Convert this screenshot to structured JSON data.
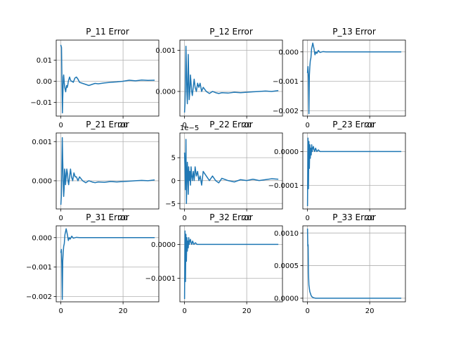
{
  "figure": {
    "background": "#ffffff",
    "line_color": "#1f77b4",
    "grid_color": "#b0b0b0",
    "axis_color": "#000000"
  },
  "chart_data": [
    {
      "type": "line",
      "title": "P_11 Error",
      "xlabel": "",
      "ylabel": "",
      "xlim": [
        -1.5,
        31.5
      ],
      "ylim": [
        -0.0165,
        0.0195
      ],
      "xticks": [
        0,
        20
      ],
      "xtick_labels": [
        "0",
        "20"
      ],
      "yticks": [
        -0.01,
        0.0,
        0.01
      ],
      "ytick_labels": [
        "−0.01",
        "0.00",
        "0.01"
      ],
      "offset_text": "",
      "grid": true,
      "series": [
        {
          "x": [
            0,
            0.2,
            0.35,
            0.5,
            0.6,
            0.7,
            0.8,
            0.9,
            1.0,
            1.1,
            1.25,
            1.4,
            1.55,
            1.7,
            1.85,
            2.0,
            2.2,
            2.4,
            2.6,
            2.8,
            3.0,
            3.3,
            3.6,
            4.0,
            4.5,
            5.0,
            5.5,
            6.0,
            7,
            8,
            9,
            10,
            11,
            12,
            14,
            16,
            18,
            20,
            22,
            24,
            26,
            28,
            30
          ],
          "y": [
            0.017,
            0.016,
            0.0,
            -0.015,
            -0.008,
            -0.003,
            0.002,
            0.003,
            0.001,
            -0.001,
            -0.003,
            -0.004,
            -0.005,
            -0.003,
            -0.002,
            -0.003,
            -0.002,
            0.0,
            0.001,
            0.002,
            0.001,
            0.0,
            0.0,
            -0.0005,
            0.0015,
            0.002,
            0.001,
            -0.0005,
            -0.001,
            -0.0015,
            -0.002,
            -0.0015,
            -0.001,
            -0.0012,
            -0.0008,
            -0.0005,
            -0.0003,
            0.0,
            0.0005,
            0.0002,
            0.0006,
            0.0004,
            0.0005
          ]
        }
      ]
    },
    {
      "type": "line",
      "title": "P_12 Error",
      "xlabel": "",
      "ylabel": "",
      "xlim": [
        -1.5,
        31.5
      ],
      "ylim": [
        -0.0006,
        0.00125
      ],
      "xticks": [
        0,
        20
      ],
      "xtick_labels": [
        "0",
        "20"
      ],
      "yticks": [
        0.0,
        0.001
      ],
      "ytick_labels": [
        "0.000",
        "0.001"
      ],
      "offset_text": "",
      "grid": true,
      "series": [
        {
          "x": [
            0,
            0.15,
            0.3,
            0.45,
            0.6,
            0.75,
            0.9,
            1.05,
            1.2,
            1.35,
            1.5,
            1.7,
            1.9,
            2.1,
            2.3,
            2.5,
            2.8,
            3.1,
            3.4,
            3.8,
            4.2,
            4.6,
            5,
            5.5,
            6,
            7,
            8,
            9,
            10,
            11,
            12,
            14,
            16,
            18,
            20,
            22,
            24,
            26,
            28,
            30
          ],
          "y": [
            -0.0005,
            -0.0003,
            0.0002,
            0.0011,
            0.0006,
            0.0,
            -0.0003,
            0.0002,
            0.0009,
            0.0003,
            -0.0002,
            0.0,
            0.0004,
            0.0002,
            0.0,
            -0.0001,
            0.0001,
            0.0003,
            0.0001,
            0.0,
            0.0002,
            0.0001,
            0.0002,
            0.0,
            0.0001,
            0.0,
            -5e-05,
            0.0,
            -3e-05,
            -5e-05,
            -3e-05,
            -4e-05,
            -2e-05,
            -3e-05,
            -2e-05,
            -1e-05,
            0.0,
            1e-05,
            0.0,
            2e-05
          ]
        }
      ]
    },
    {
      "type": "line",
      "title": "P_13 Error",
      "xlabel": "",
      "ylabel": "",
      "xlim": [
        -1.5,
        31.5
      ],
      "ylim": [
        -0.00218,
        0.0004
      ],
      "xticks": [
        0,
        20
      ],
      "xtick_labels": [
        "0",
        "20"
      ],
      "yticks": [
        -0.002,
        -0.001,
        0.0
      ],
      "ytick_labels": [
        "−0.002",
        "−0.001",
        "0.000"
      ],
      "offset_text": "",
      "grid": true,
      "series": [
        {
          "x": [
            0,
            0.15,
            0.3,
            0.45,
            0.6,
            0.75,
            0.9,
            1.1,
            1.3,
            1.5,
            1.7,
            1.9,
            2.1,
            2.4,
            2.7,
            3.0,
            3.5,
            4.0,
            5,
            6,
            8,
            10,
            15,
            20,
            25,
            30
          ],
          "y": [
            -0.0007,
            -0.0005,
            -0.0009,
            -0.0021,
            -0.0008,
            -0.0005,
            -0.0003,
            -0.0002,
            0.0001,
            0.0002,
            0.0003,
            0.0002,
            0.0001,
            -0.0001,
            0.0,
            -5e-05,
            5e-05,
            -2e-05,
            1e-05,
            0.0,
            0.0,
            0.0,
            0.0,
            0.0,
            0.0,
            0.0
          ]
        }
      ]
    },
    {
      "type": "line",
      "title": "P_21 Error",
      "xlabel": "",
      "ylabel": "",
      "xlim": [
        -1.5,
        31.5
      ],
      "ylim": [
        -0.00072,
        0.00122
      ],
      "xticks": [
        0,
        20
      ],
      "xtick_labels": [
        "0",
        "20"
      ],
      "yticks": [
        0.0,
        0.001
      ],
      "ytick_labels": [
        "0.000",
        "0.001"
      ],
      "offset_text": "",
      "grid": true,
      "series": [
        {
          "x": [
            0,
            0.15,
            0.3,
            0.45,
            0.6,
            0.75,
            0.9,
            1.05,
            1.2,
            1.35,
            1.5,
            1.7,
            1.9,
            2.1,
            2.3,
            2.5,
            2.8,
            3.1,
            3.4,
            3.8,
            4.2,
            4.6,
            5,
            5.5,
            6,
            7,
            8,
            9,
            10,
            11,
            12,
            14,
            16,
            18,
            20,
            22,
            24,
            26,
            28,
            30
          ],
          "y": [
            -0.0006,
            -0.0004,
            0.0002,
            0.0011,
            0.0005,
            0.0,
            -0.0004,
            -0.0002,
            0.0003,
            0.0002,
            -0.0001,
            0.0001,
            0.0003,
            0.0002,
            0.0,
            -0.0001,
            0.0001,
            0.0003,
            0.0001,
            0.0,
            0.0002,
            0.0001,
            0.0001,
            0.0,
            0.0001,
            0.0,
            -5e-05,
            0.0,
            -3e-05,
            -5e-05,
            -3e-05,
            -4e-05,
            -2e-05,
            -3e-05,
            -2e-05,
            -1e-05,
            0.0,
            1e-05,
            0.0,
            2e-05
          ]
        }
      ]
    },
    {
      "type": "line",
      "title": "P_22 Error",
      "xlabel": "",
      "ylabel": "",
      "xlim": [
        -1.5,
        31.5
      ],
      "ylim": [
        -6.2,
        10.4
      ],
      "xticks": [
        0,
        20
      ],
      "xtick_labels": [
        "0",
        "20"
      ],
      "yticks": [
        -5,
        0,
        5
      ],
      "ytick_labels": [
        "−5",
        "0",
        "5"
      ],
      "offset_text": "1e−5",
      "grid": true,
      "series": [
        {
          "x": [
            0,
            0.15,
            0.3,
            0.45,
            0.6,
            0.75,
            0.9,
            1.05,
            1.2,
            1.35,
            1.5,
            1.7,
            1.9,
            2.1,
            2.3,
            2.5,
            2.8,
            3.1,
            3.4,
            3.8,
            4.2,
            4.6,
            5,
            5.5,
            6,
            7,
            8,
            9,
            10,
            11,
            12,
            14,
            16,
            18,
            20,
            22,
            24,
            26,
            28,
            30
          ],
          "y": [
            6,
            3,
            -2,
            9,
            -5,
            0,
            4,
            1,
            -3,
            3,
            0,
            2,
            -1,
            3,
            1,
            0,
            2,
            0,
            3,
            1,
            2,
            0,
            1,
            -1,
            2,
            1,
            0,
            1,
            0,
            -0.5,
            0.5,
            0,
            -0.3,
            0.2,
            0,
            0.3,
            0,
            0.2,
            0.4,
            0.3
          ]
        }
      ]
    },
    {
      "type": "line",
      "title": "P_23 Error",
      "xlabel": "",
      "ylabel": "",
      "xlim": [
        -1.5,
        31.5
      ],
      "ylim": [
        -0.00017,
        5.5e-05
      ],
      "xticks": [
        0,
        20
      ],
      "xtick_labels": [
        "0",
        "20"
      ],
      "yticks": [
        -0.0001,
        0.0
      ],
      "ytick_labels": [
        "−0.0001",
        "0.0000"
      ],
      "offset_text": "",
      "grid": true,
      "series": [
        {
          "x": [
            0,
            0.15,
            0.3,
            0.45,
            0.6,
            0.75,
            0.9,
            1.05,
            1.2,
            1.35,
            1.5,
            1.7,
            1.9,
            2.1,
            2.3,
            2.6,
            3.0,
            3.5,
            4,
            5,
            6,
            8,
            10,
            15,
            20,
            25,
            30
          ],
          "y": [
            -0.00016,
            4e-05,
            -0.00011,
            3e-05,
            -5e-05,
            2e-05,
            -2e-05,
            1e-05,
            -1e-05,
            2e-05,
            0.0,
            1e-05,
            1.5e-05,
            5e-06,
            0.0,
            1e-05,
            0.0,
            5e-06,
            0.0,
            0.0,
            0.0,
            0.0,
            0.0,
            0.0,
            0.0,
            0.0,
            0.0
          ]
        }
      ]
    },
    {
      "type": "line",
      "title": "P_31 Error",
      "xlabel": "",
      "ylabel": "",
      "xlim": [
        -1.5,
        31.5
      ],
      "ylim": [
        -0.00218,
        0.0004
      ],
      "xticks": [
        0,
        20
      ],
      "xtick_labels": [
        "0",
        "20"
      ],
      "yticks": [
        -0.002,
        -0.001,
        0.0
      ],
      "ytick_labels": [
        "−0.002",
        "−0.001",
        "0.000"
      ],
      "offset_text": "",
      "grid": true,
      "series": [
        {
          "x": [
            0,
            0.15,
            0.3,
            0.45,
            0.6,
            0.75,
            0.9,
            1.1,
            1.3,
            1.5,
            1.7,
            1.9,
            2.1,
            2.4,
            2.7,
            3.0,
            3.5,
            4.0,
            5,
            6,
            8,
            10,
            15,
            20,
            25,
            30
          ],
          "y": [
            -0.0005,
            -0.0004,
            -0.0009,
            -0.0021,
            -0.0008,
            -0.0005,
            -0.0003,
            -0.0002,
            0.0001,
            0.0002,
            0.0003,
            0.0002,
            0.0001,
            -0.0001,
            0.0,
            -5e-05,
            5e-05,
            -2e-05,
            1e-05,
            0.0,
            0.0,
            0.0,
            0.0,
            0.0,
            0.0,
            0.0
          ]
        }
      ]
    },
    {
      "type": "line",
      "title": "P_32 Error",
      "xlabel": "",
      "ylabel": "",
      "xlim": [
        -1.5,
        31.5
      ],
      "ylim": [
        -0.00017,
        5.5e-05
      ],
      "xticks": [
        0,
        20
      ],
      "xtick_labels": [
        "0",
        "20"
      ],
      "yticks": [
        -0.0001,
        0.0
      ],
      "ytick_labels": [
        "−0.0001",
        "0.0000"
      ],
      "offset_text": "",
      "grid": true,
      "series": [
        {
          "x": [
            0,
            0.15,
            0.3,
            0.45,
            0.6,
            0.75,
            0.9,
            1.05,
            1.2,
            1.35,
            1.5,
            1.7,
            1.9,
            2.1,
            2.3,
            2.6,
            3.0,
            3.5,
            4,
            5,
            6,
            8,
            10,
            15,
            20,
            25,
            30
          ],
          "y": [
            -0.00016,
            4e-05,
            -0.00011,
            3e-05,
            -5e-05,
            2e-05,
            -2e-05,
            1e-05,
            -1e-05,
            2e-05,
            0.0,
            1e-05,
            1.5e-05,
            5e-06,
            0.0,
            1e-05,
            0.0,
            5e-06,
            0.0,
            0.0,
            0.0,
            0.0,
            0.0,
            0.0,
            0.0,
            0.0,
            0.0
          ]
        }
      ]
    },
    {
      "type": "line",
      "title": "P_33 Error",
      "xlabel": "",
      "ylabel": "",
      "xlim": [
        -1.5,
        31.5
      ],
      "ylim": [
        -5.5e-05,
        0.00111
      ],
      "xticks": [
        0,
        20
      ],
      "xtick_labels": [
        "0",
        "20"
      ],
      "yticks": [
        0.0,
        0.0005,
        0.001
      ],
      "ytick_labels": [
        "0.0000",
        "0.0005",
        "0.0010"
      ],
      "offset_text": "",
      "grid": true,
      "series": [
        {
          "x": [
            0,
            0.1,
            0.2,
            0.3,
            0.45,
            0.6,
            0.75,
            0.9,
            1.1,
            1.3,
            1.5,
            1.8,
            2.2,
            2.6,
            3.0,
            4,
            5,
            6,
            8,
            10,
            15,
            20,
            25,
            30
          ],
          "y": [
            0.00106,
            0.0008,
            0.00082,
            0.0004,
            0.0002,
            0.00015,
            0.0001,
            8e-05,
            5e-05,
            3e-05,
            2e-05,
            1e-05,
            5e-06,
            0.0,
            0.0,
            0.0,
            0.0,
            0.0,
            0.0,
            0.0,
            0.0,
            0.0,
            0.0,
            0.0
          ]
        }
      ]
    }
  ]
}
